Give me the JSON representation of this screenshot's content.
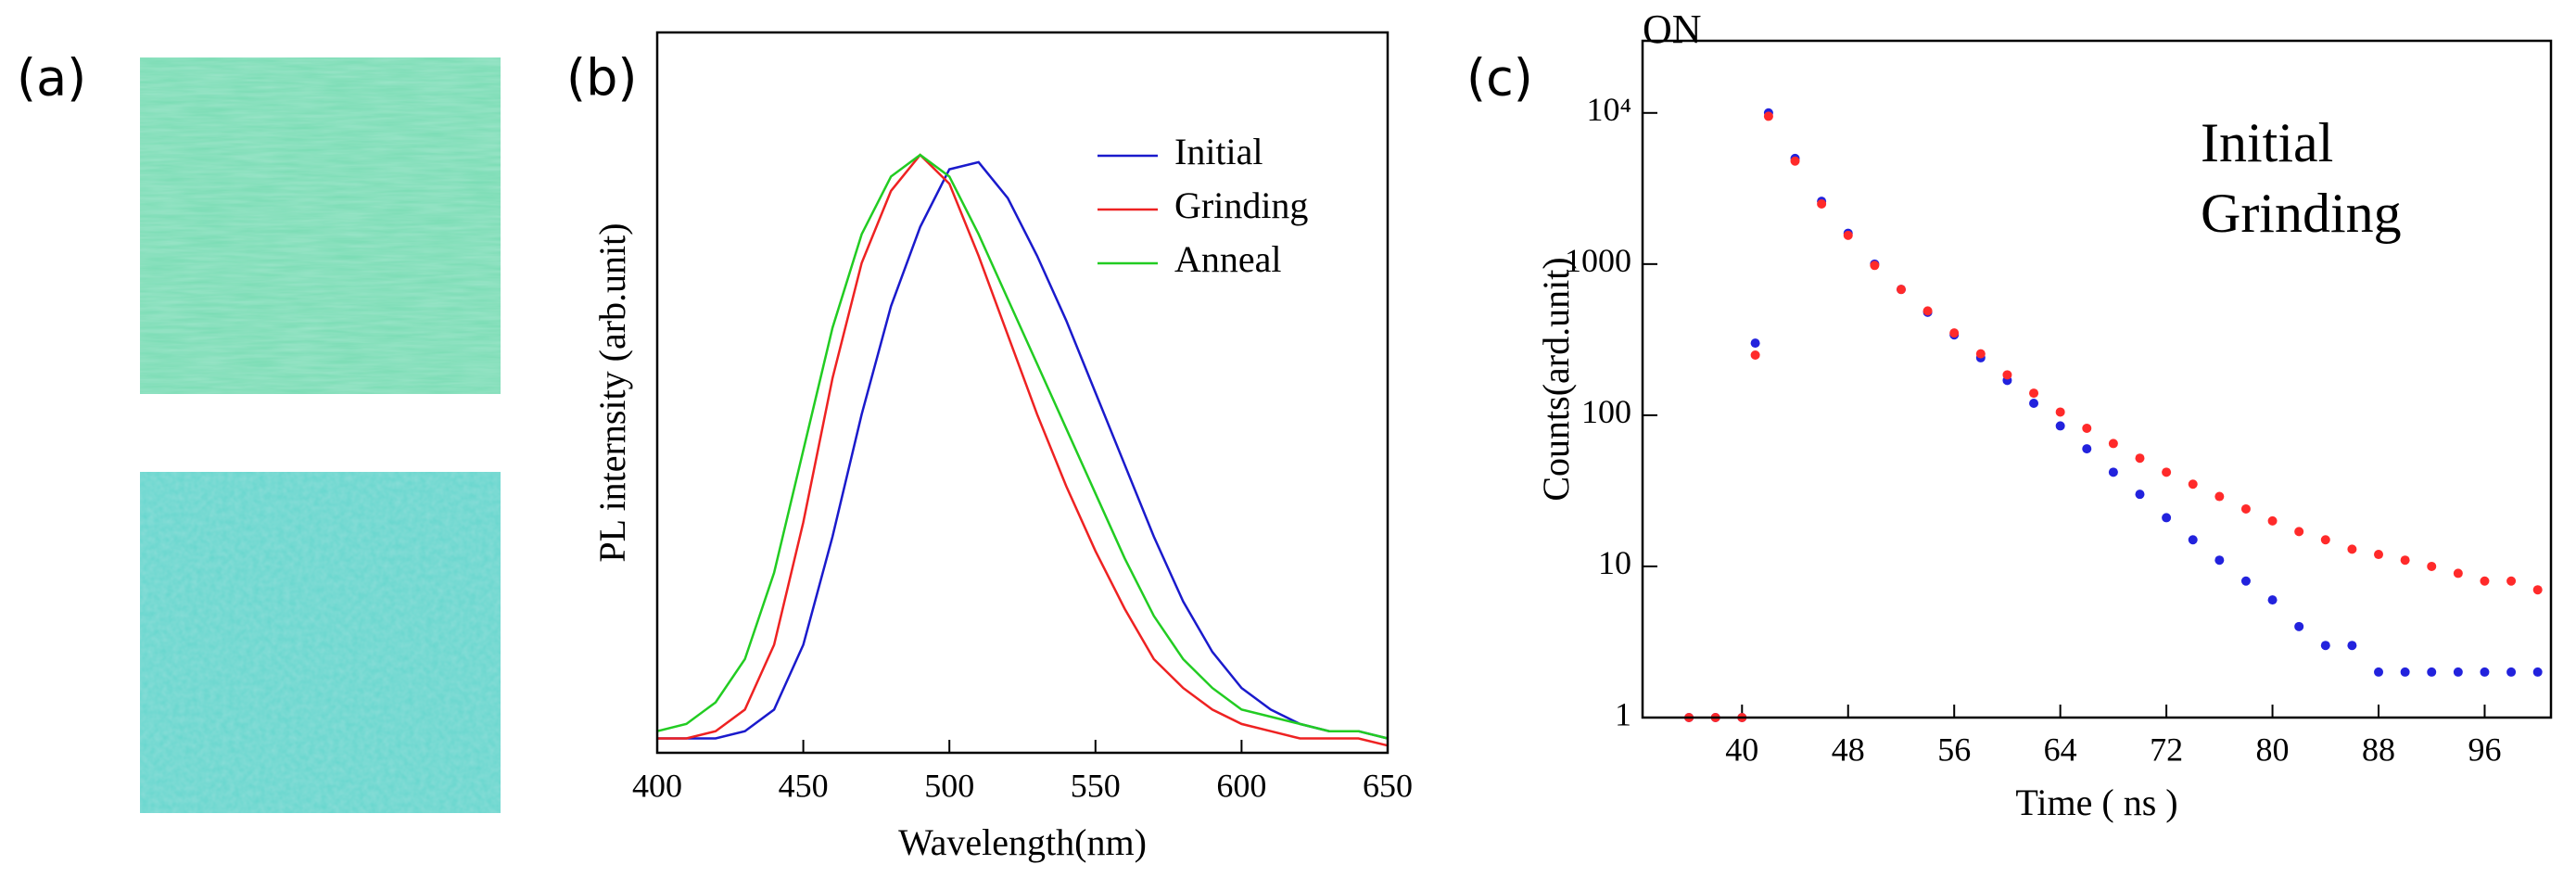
{
  "panel_labels": [
    "(a)",
    "(b)",
    "(c)"
  ],
  "chart_data": [
    {
      "type": "line",
      "x_label": "Wavelength(nm)",
      "y_label": "PL internsity (arb.unit)",
      "x": [
        400,
        410,
        420,
        430,
        440,
        450,
        460,
        470,
        480,
        490,
        500,
        510,
        520,
        530,
        540,
        550,
        560,
        570,
        580,
        590,
        600,
        610,
        620,
        630,
        640,
        650
      ],
      "xlim": [
        400,
        650
      ],
      "xticks": [
        400,
        450,
        500,
        550,
        600,
        650
      ],
      "ylim": [
        0,
        1
      ],
      "series": [
        {
          "name": "Initial",
          "color": "#1a1acc",
          "values": [
            0.02,
            0.02,
            0.02,
            0.03,
            0.06,
            0.15,
            0.3,
            0.47,
            0.62,
            0.73,
            0.81,
            0.82,
            0.77,
            0.69,
            0.6,
            0.5,
            0.4,
            0.3,
            0.21,
            0.14,
            0.09,
            0.06,
            0.04,
            0.03,
            0.03,
            0.02
          ]
        },
        {
          "name": "Grinding",
          "color": "#ee2222",
          "values": [
            0.02,
            0.02,
            0.03,
            0.06,
            0.15,
            0.32,
            0.52,
            0.68,
            0.78,
            0.83,
            0.79,
            0.69,
            0.58,
            0.47,
            0.37,
            0.28,
            0.2,
            0.13,
            0.09,
            0.06,
            0.04,
            0.03,
            0.02,
            0.02,
            0.02,
            0.01
          ]
        },
        {
          "name": "Anneal",
          "color": "#22cc22",
          "values": [
            0.03,
            0.04,
            0.07,
            0.13,
            0.25,
            0.42,
            0.59,
            0.72,
            0.8,
            0.83,
            0.8,
            0.72,
            0.63,
            0.54,
            0.45,
            0.36,
            0.27,
            0.19,
            0.13,
            0.09,
            0.06,
            0.05,
            0.04,
            0.03,
            0.03,
            0.02
          ]
        }
      ]
    },
    {
      "type": "scatter",
      "title": "ON",
      "x_label": "Time ( ns )",
      "y_label": "Counts(ard.unit)",
      "log_y": true,
      "x": [
        36,
        38,
        40,
        41,
        42,
        44,
        46,
        48,
        50,
        52,
        54,
        56,
        58,
        60,
        62,
        64,
        66,
        68,
        70,
        72,
        74,
        76,
        78,
        80,
        82,
        84,
        86,
        88,
        90,
        92,
        94,
        96,
        98,
        100
      ],
      "xlim": [
        32.5,
        101
      ],
      "xticks": [
        40,
        48,
        56,
        64,
        72,
        80,
        88,
        96
      ],
      "ylim": [
        1,
        30000
      ],
      "yticks": [
        1,
        10,
        100,
        1000,
        {
          "value": 10000,
          "label": "10⁴"
        }
      ],
      "series": [
        {
          "name": "Initial",
          "color": "#2222dd",
          "values": [
            1,
            1,
            1,
            300,
            10000,
            5000,
            2600,
            1600,
            1000,
            680,
            480,
            340,
            240,
            170,
            120,
            85,
            60,
            42,
            30,
            21,
            15,
            11,
            8,
            6,
            4,
            3,
            3,
            2,
            2,
            2,
            2,
            2,
            2,
            2
          ]
        },
        {
          "name": "Grinding",
          "color": "#ff2a2a",
          "values": [
            1,
            1,
            1,
            250,
            9500,
            4800,
            2500,
            1550,
            980,
            680,
            490,
            350,
            255,
            185,
            140,
            105,
            82,
            65,
            52,
            42,
            35,
            29,
            24,
            20,
            17,
            15,
            13,
            12,
            11,
            10,
            9,
            8,
            8,
            7
          ]
        }
      ]
    }
  ]
}
